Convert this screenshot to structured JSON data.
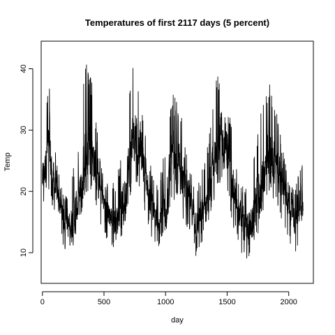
{
  "chart_data": {
    "type": "line",
    "title": "Temperatures of first 2117 days (5 percent)",
    "xlabel": "day",
    "ylabel": "Temp",
    "xlim": [
      -10,
      2200
    ],
    "ylim": [
      5,
      44.5
    ],
    "x_ticks": [
      0,
      500,
      1000,
      1500,
      2000
    ],
    "x_tick_labels": [
      "0",
      "500",
      "1000",
      "1500",
      "2000"
    ],
    "y_ticks": [
      10,
      20,
      30,
      40
    ],
    "y_tick_labels": [
      "10",
      "20",
      "30",
      "40"
    ],
    "grid": false,
    "series": [
      {
        "name": "Temp",
        "color": "#000000",
        "n_days": 2117,
        "approx_envelope": {
          "x": [
            0,
            50,
            100,
            150,
            200,
            250,
            300,
            350,
            400,
            450,
            500,
            550,
            600,
            650,
            700,
            750,
            800,
            850,
            900,
            950,
            1000,
            1050,
            1100,
            1150,
            1200,
            1250,
            1300,
            1350,
            1400,
            1450,
            1500,
            1550,
            1600,
            1650,
            1700,
            1750,
            1800,
            1850,
            1900,
            1950,
            2000,
            2050,
            2100,
            2117
          ],
          "mean": [
            22,
            27,
            21,
            17,
            14,
            15,
            19,
            25,
            27,
            22,
            18,
            16,
            15,
            18,
            24,
            30,
            27,
            21,
            16,
            15,
            18,
            24,
            25,
            22,
            18,
            15,
            16,
            19,
            24,
            29,
            27,
            20,
            16,
            14,
            15,
            19,
            23,
            25,
            25,
            21,
            17,
            16,
            18,
            19
          ],
          "min": [
            17,
            20,
            16,
            12,
            9.5,
            11,
            14,
            19,
            19,
            16,
            13,
            11,
            10.5,
            13,
            17,
            22,
            20,
            15,
            10.5,
            11,
            13,
            18,
            18,
            15,
            13,
            9,
            11,
            14,
            18,
            21,
            19,
            14,
            11,
            7.5,
            11,
            13,
            17,
            19,
            18,
            15,
            12,
            9.5,
            13,
            14
          ],
          "max": [
            27,
            39.5,
            28,
            21,
            19,
            24,
            28,
            42.5,
            38,
            29,
            22,
            21,
            22,
            27,
            36,
            42,
            36,
            28,
            22,
            22,
            28,
            36,
            35,
            30,
            24,
            21,
            24,
            29,
            38,
            40,
            36,
            28,
            22,
            21,
            24,
            30,
            36,
            38,
            34,
            27,
            22,
            20,
            25.5,
            25
          ]
        }
      }
    ]
  }
}
